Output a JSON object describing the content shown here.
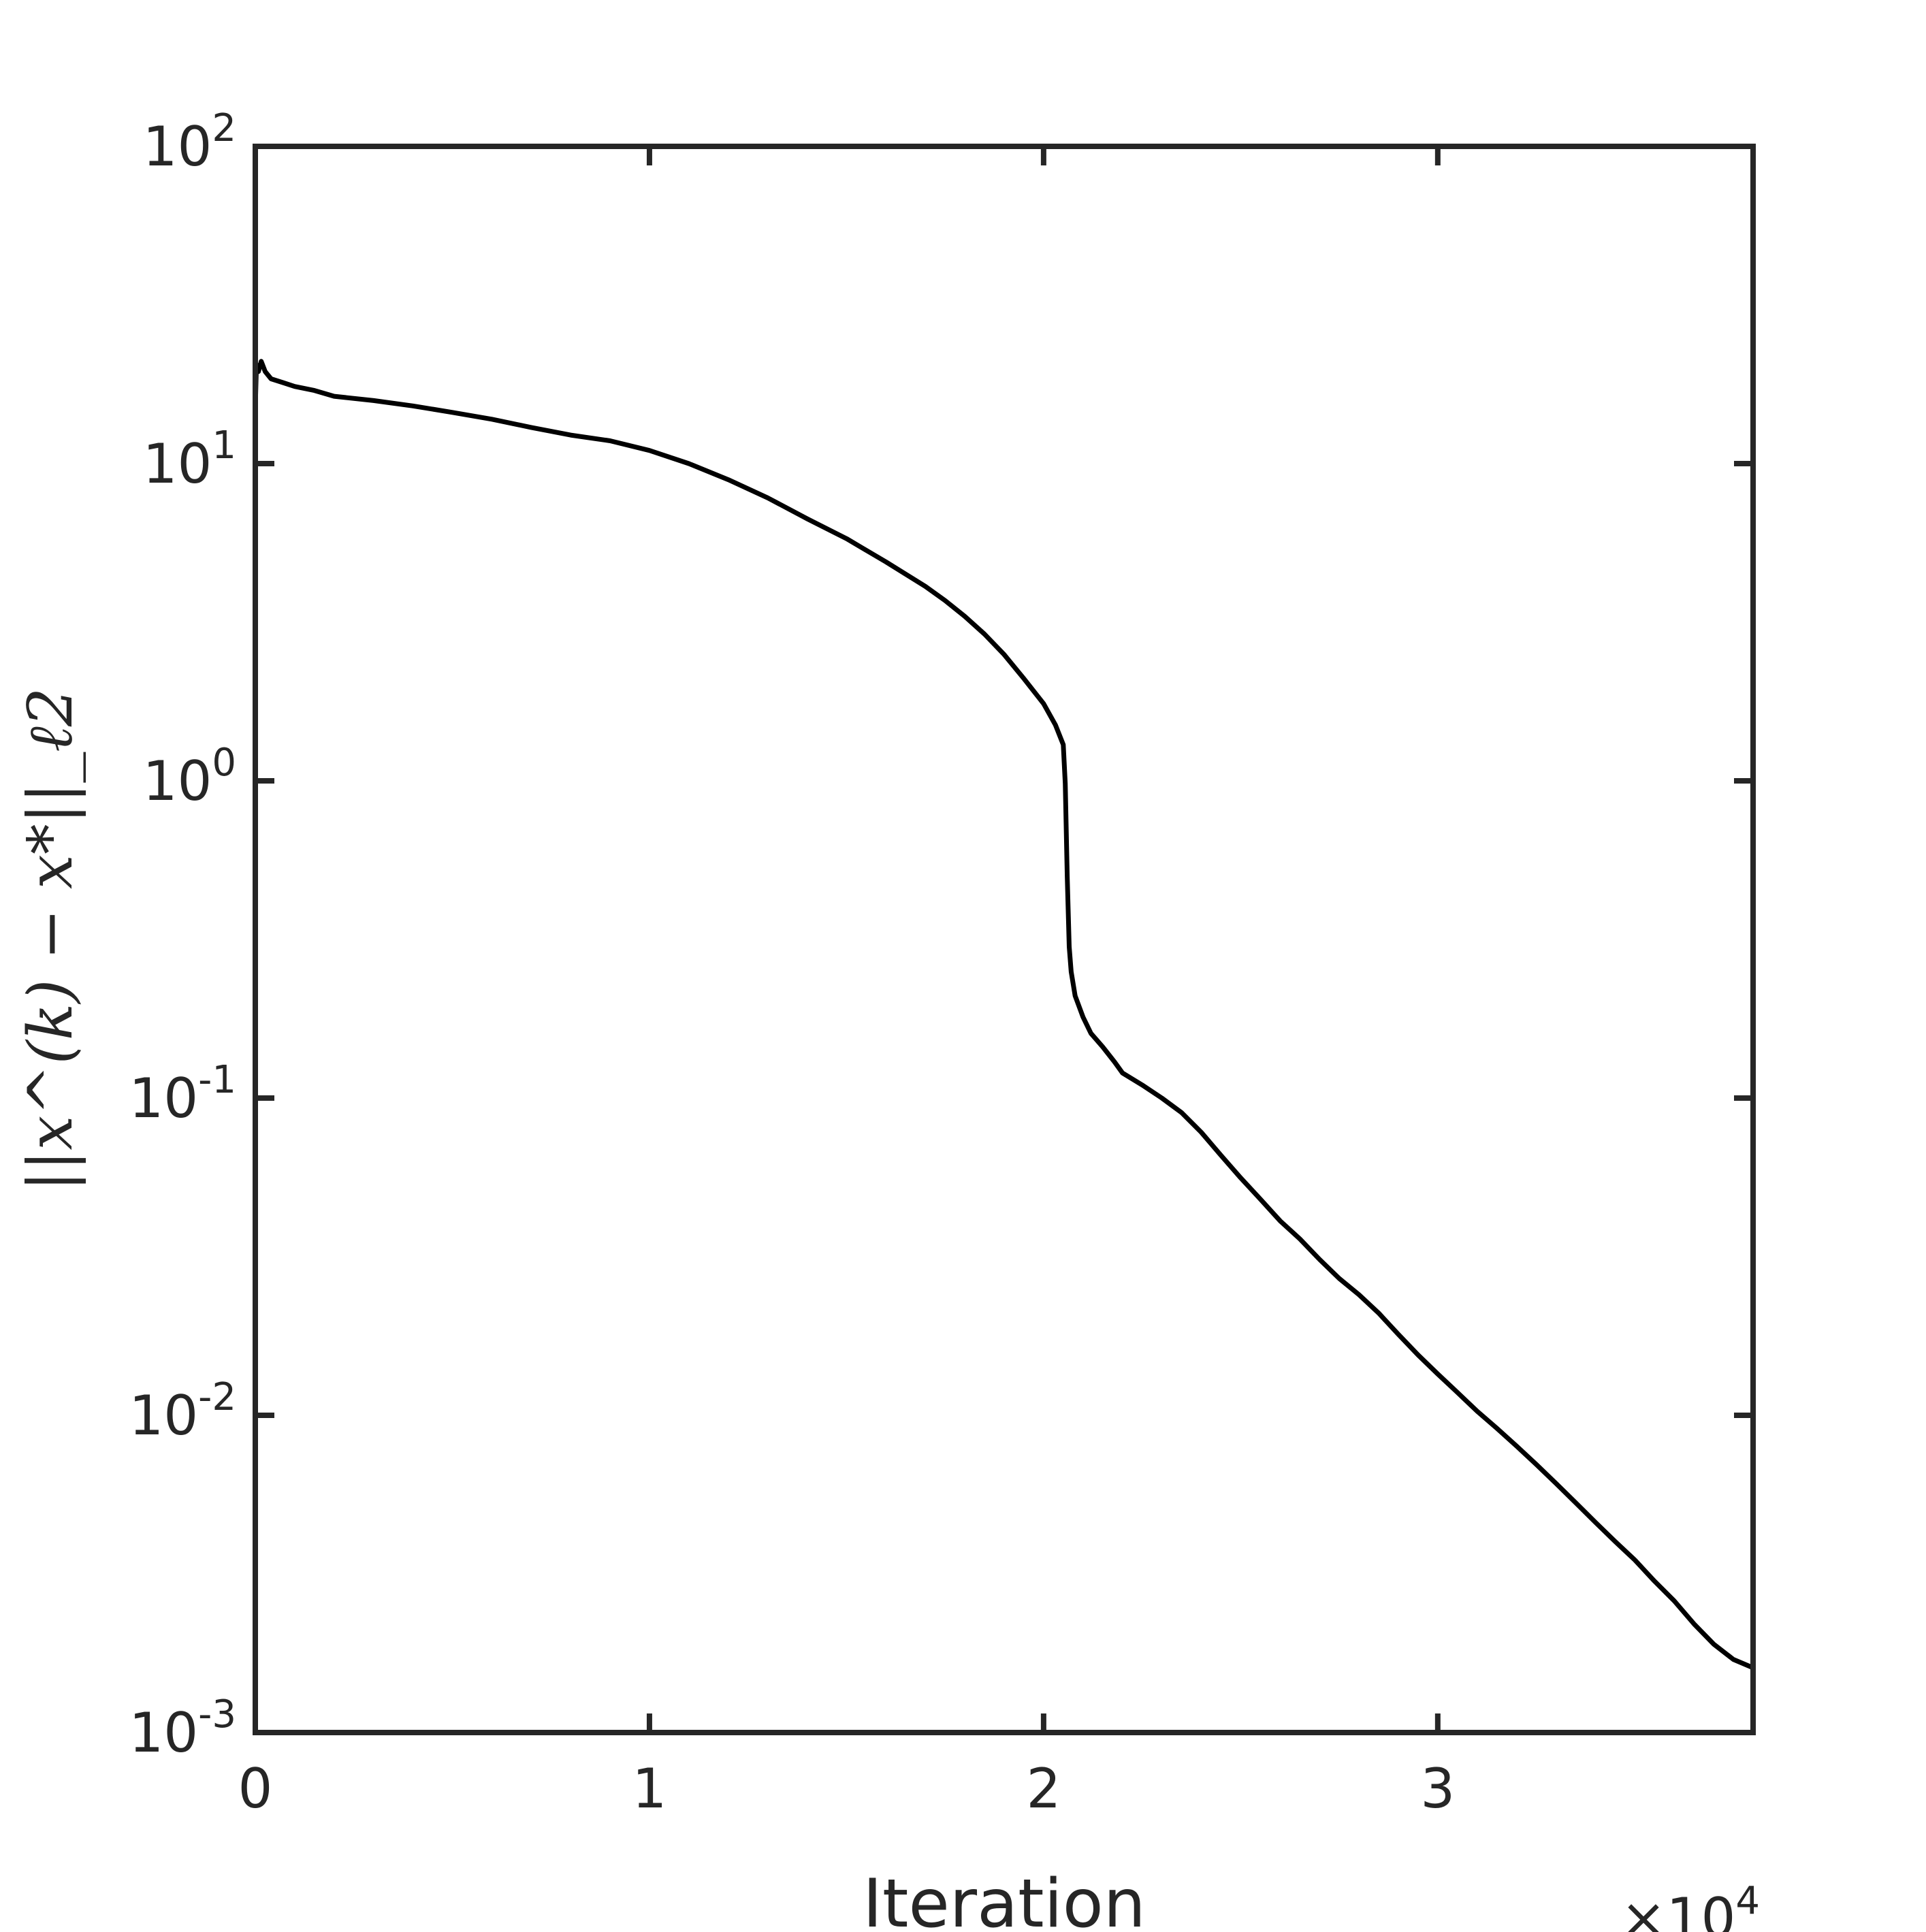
{
  "chart_data": {
    "type": "line",
    "title": "",
    "xlabel": "Iteration",
    "ylabel": "||x^(k) − x*||_ℓ2",
    "x_multiplier": "×10",
    "x_multiplier_exponent": "4",
    "xlim": [
      0,
      38000
    ],
    "ylim": [
      0.001,
      100
    ],
    "yscale": "log",
    "grid": false,
    "box": true,
    "line_color": "#000000",
    "axis_color": "#262626",
    "x_ticks": [
      {
        "value": 0,
        "label": "0"
      },
      {
        "value": 10000,
        "label": "1"
      },
      {
        "value": 20000,
        "label": "2"
      },
      {
        "value": 30000,
        "label": "3"
      }
    ],
    "y_ticks": [
      {
        "value": 100,
        "base": "10",
        "exp": "2"
      },
      {
        "value": 10,
        "base": "10",
        "exp": "1"
      },
      {
        "value": 1,
        "base": "10",
        "exp": "0"
      },
      {
        "value": 0.1,
        "base": "10",
        "exp": "-1"
      },
      {
        "value": 0.01,
        "base": "10",
        "exp": "-2"
      },
      {
        "value": 0.001,
        "base": "10",
        "exp": "-3"
      }
    ],
    "series": [
      {
        "x": [
          0,
          30,
          80,
          150,
          250,
          400,
          700,
          1000,
          1500,
          2000,
          3000,
          4000,
          5000,
          6000,
          7000,
          8000,
          9000,
          10000,
          11000,
          12000,
          13000,
          14000,
          15000,
          16000,
          17000,
          17500,
          18000,
          18500,
          19000,
          19500,
          20000,
          20300,
          20500,
          20550,
          20600,
          20650,
          20700,
          20800,
          21000,
          21200,
          21500,
          21800,
          22000,
          22500,
          23000,
          23500,
          24000,
          24500,
          25000,
          25500,
          26000,
          26500,
          27000,
          27500,
          28000,
          28500,
          29000,
          29500,
          30000,
          30500,
          31000,
          31500,
          32000,
          32500,
          33000,
          33500,
          34000,
          34500,
          35000,
          35500,
          36000,
          36500,
          37000,
          37500,
          38000
        ],
        "y": [
          15,
          20.5,
          19.5,
          21,
          19.5,
          18.5,
          18,
          17.5,
          17,
          16.3,
          15.8,
          15.2,
          14.5,
          13.8,
          13,
          12.3,
          11.8,
          11,
          10,
          8.9,
          7.8,
          6.7,
          5.8,
          4.9,
          4.1,
          3.7,
          3.3,
          2.9,
          2.5,
          2.1,
          1.75,
          1.5,
          1.3,
          0.98,
          0.5,
          0.3,
          0.25,
          0.21,
          0.18,
          0.16,
          0.145,
          0.13,
          0.12,
          0.11,
          0.1,
          0.09,
          0.078,
          0.066,
          0.056,
          0.048,
          0.041,
          0.036,
          0.031,
          0.027,
          0.024,
          0.021,
          0.018,
          0.0155,
          0.0135,
          0.0118,
          0.0103,
          0.0091,
          0.008,
          0.007,
          0.0061,
          0.0053,
          0.0046,
          0.004,
          0.0035,
          0.003,
          0.0026,
          0.0022,
          0.0019,
          0.0017,
          0.0016
        ]
      }
    ]
  }
}
